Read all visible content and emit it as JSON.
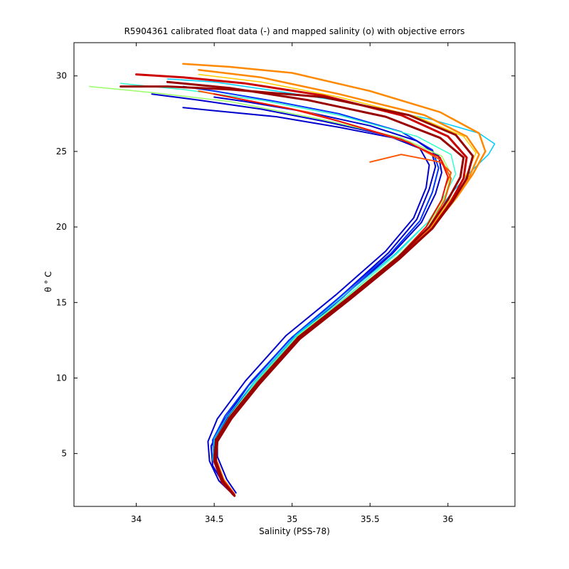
{
  "chart_data": {
    "type": "line",
    "title": "R5904361 calibrated float data (-) and mapped salinity (o) with objective errors",
    "xlabel": "Salinity (PSS-78)",
    "ylabel": "θ ° C",
    "xlim": [
      33.6,
      36.43
    ],
    "ylim": [
      1.5,
      32.2
    ],
    "x_ticks": [
      34,
      34.5,
      35,
      35.5,
      36
    ],
    "y_ticks": [
      5,
      10,
      15,
      20,
      25,
      30
    ],
    "x_tick_labels": [
      "34",
      "34.5",
      "35",
      "35.5",
      "36"
    ],
    "y_tick_labels": [
      "5",
      "10",
      "15",
      "20",
      "25",
      "30"
    ],
    "grid": false,
    "legend": "none",
    "series_colors": [
      "#0000cc",
      "#0033ff",
      "#00ccff",
      "#33ffcc",
      "#99ff66",
      "#ffcc00",
      "#ff8800",
      "#ff5500",
      "#ee1100",
      "#cc0000",
      "#990000"
    ],
    "series": [
      {
        "color": "#0000cc",
        "width": 2.0,
        "points": [
          [
            34.63,
            2.2
          ],
          [
            34.56,
            3
          ],
          [
            34.49,
            4.2
          ],
          [
            34.48,
            5.5
          ],
          [
            34.55,
            7
          ],
          [
            34.72,
            9.5
          ],
          [
            34.98,
            12.5
          ],
          [
            35.3,
            15.3
          ],
          [
            35.62,
            18.3
          ],
          [
            35.8,
            20.5
          ],
          [
            35.88,
            22.5
          ],
          [
            35.92,
            24
          ],
          [
            35.9,
            24.8
          ],
          [
            35.7,
            25.8
          ],
          [
            35.3,
            26.6
          ],
          [
            34.9,
            27.3
          ],
          [
            34.5,
            27.7
          ],
          [
            34.3,
            27.9
          ]
        ]
      },
      {
        "color": "#0000cc",
        "width": 2.0,
        "points": [
          [
            34.62,
            2.3
          ],
          [
            34.53,
            3.2
          ],
          [
            34.47,
            4.5
          ],
          [
            34.46,
            5.8
          ],
          [
            34.52,
            7.3
          ],
          [
            34.7,
            9.8
          ],
          [
            34.96,
            12.8
          ],
          [
            35.28,
            15.5
          ],
          [
            35.6,
            18.4
          ],
          [
            35.78,
            20.6
          ],
          [
            35.86,
            22.6
          ],
          [
            35.88,
            24.1
          ],
          [
            35.82,
            25.2
          ],
          [
            35.6,
            26.1
          ],
          [
            35.2,
            27
          ],
          [
            34.8,
            27.8
          ],
          [
            34.4,
            28.4
          ],
          [
            34.1,
            28.8
          ]
        ]
      },
      {
        "color": "#0033ff",
        "width": 2.0,
        "points": [
          [
            34.63,
            2.2
          ],
          [
            34.57,
            3.1
          ],
          [
            34.5,
            4.4
          ],
          [
            34.49,
            5.9
          ],
          [
            34.57,
            7.5
          ],
          [
            34.74,
            9.8
          ],
          [
            35,
            12.7
          ],
          [
            35.31,
            15.4
          ],
          [
            35.63,
            18.2
          ],
          [
            35.82,
            20.4
          ],
          [
            35.9,
            22.3
          ],
          [
            35.94,
            23.9
          ],
          [
            35.9,
            25.1
          ],
          [
            35.7,
            26.3
          ],
          [
            35.3,
            27.5
          ],
          [
            34.9,
            28.3
          ],
          [
            34.5,
            29
          ],
          [
            34.3,
            29.3
          ]
        ]
      },
      {
        "color": "#0000cc",
        "width": 2.0,
        "points": [
          [
            34.64,
            2.4
          ],
          [
            34.58,
            3.3
          ],
          [
            34.52,
            4.8
          ],
          [
            34.52,
            6.2
          ],
          [
            34.6,
            7.6
          ],
          [
            34.78,
            9.9
          ],
          [
            35.02,
            12.7
          ],
          [
            35.33,
            15.4
          ],
          [
            35.64,
            18.2
          ],
          [
            35.83,
            20.3
          ],
          [
            35.92,
            22.2
          ],
          [
            35.96,
            23.6
          ],
          [
            35.94,
            24.7
          ],
          [
            35.8,
            25.7
          ],
          [
            35.5,
            26.7
          ],
          [
            35.1,
            27.6
          ],
          [
            34.7,
            28.3
          ],
          [
            34.5,
            28.6
          ]
        ]
      },
      {
        "color": "#00ccff",
        "width": 1.5,
        "points": [
          [
            34.63,
            2.3
          ],
          [
            34.55,
            3.2
          ],
          [
            34.49,
            4.6
          ],
          [
            34.5,
            6
          ],
          [
            34.58,
            7.4
          ],
          [
            34.76,
            9.8
          ],
          [
            35.02,
            12.8
          ],
          [
            35.34,
            15.5
          ],
          [
            35.66,
            18.2
          ],
          [
            35.88,
            20.4
          ],
          [
            36.02,
            22.2
          ],
          [
            36.14,
            23.6
          ],
          [
            36.26,
            24.8
          ],
          [
            36.3,
            25.5
          ],
          [
            36.2,
            26.2
          ],
          [
            35.9,
            27.1
          ],
          [
            35.4,
            28.2
          ],
          [
            34.9,
            29
          ],
          [
            34.5,
            29.6
          ],
          [
            34.2,
            29.8
          ]
        ]
      },
      {
        "color": "#33ffcc",
        "width": 1.5,
        "points": [
          [
            34.63,
            2.3
          ],
          [
            34.55,
            3.2
          ],
          [
            34.5,
            4.6
          ],
          [
            34.51,
            6
          ],
          [
            34.6,
            7.5
          ],
          [
            34.77,
            9.8
          ],
          [
            35.03,
            12.8
          ],
          [
            35.35,
            15.4
          ],
          [
            35.67,
            18.2
          ],
          [
            35.87,
            20.3
          ],
          [
            35.98,
            22.1
          ],
          [
            36.05,
            23.5
          ],
          [
            36.02,
            24.8
          ],
          [
            35.8,
            26
          ],
          [
            35.3,
            27.4
          ],
          [
            34.8,
            28.4
          ],
          [
            34.3,
            29.1
          ],
          [
            34,
            29.4
          ],
          [
            33.9,
            29.5
          ]
        ]
      },
      {
        "color": "#99ff66",
        "width": 1.5,
        "points": [
          [
            34.63,
            2.3
          ],
          [
            34.56,
            3.3
          ],
          [
            34.5,
            4.7
          ],
          [
            34.51,
            6
          ],
          [
            34.6,
            7.5
          ],
          [
            34.78,
            9.8
          ],
          [
            35.04,
            12.8
          ],
          [
            35.36,
            15.4
          ],
          [
            35.68,
            18.1
          ],
          [
            35.88,
            20.2
          ],
          [
            35.98,
            22
          ],
          [
            36.02,
            23.5
          ],
          [
            35.96,
            24.7
          ],
          [
            35.7,
            25.9
          ],
          [
            35.2,
            27.1
          ],
          [
            34.6,
            28.3
          ],
          [
            34.1,
            28.9
          ],
          [
            33.8,
            29.2
          ],
          [
            33.7,
            29.3
          ]
        ]
      },
      {
        "color": "#ffcc00",
        "width": 1.5,
        "points": [
          [
            34.63,
            2.3
          ],
          [
            34.56,
            3.3
          ],
          [
            34.51,
            4.7
          ],
          [
            34.52,
            6
          ],
          [
            34.61,
            7.5
          ],
          [
            34.79,
            9.8
          ],
          [
            35.05,
            12.8
          ],
          [
            35.37,
            15.4
          ],
          [
            35.69,
            18.1
          ],
          [
            35.9,
            20.2
          ],
          [
            36.03,
            22
          ],
          [
            36.12,
            23.5
          ],
          [
            36.18,
            24.9
          ],
          [
            36.1,
            26
          ],
          [
            35.8,
            27.3
          ],
          [
            35.3,
            28.6
          ],
          [
            34.8,
            29.6
          ],
          [
            34.4,
            30.1
          ]
        ]
      },
      {
        "color": "#ff8800",
        "width": 2.5,
        "points": [
          [
            34.63,
            2.3
          ],
          [
            34.56,
            3.3
          ],
          [
            34.51,
            4.7
          ],
          [
            34.52,
            6
          ],
          [
            34.61,
            7.5
          ],
          [
            34.79,
            9.8
          ],
          [
            35.05,
            12.8
          ],
          [
            35.37,
            15.4
          ],
          [
            35.69,
            18.1
          ],
          [
            35.92,
            20.2
          ],
          [
            36.06,
            22
          ],
          [
            36.16,
            23.5
          ],
          [
            36.24,
            25
          ],
          [
            36.2,
            26.2
          ],
          [
            35.95,
            27.6
          ],
          [
            35.5,
            29
          ],
          [
            35,
            30.2
          ],
          [
            34.6,
            30.6
          ],
          [
            34.3,
            30.8
          ]
        ]
      },
      {
        "color": "#ff8800",
        "width": 2.5,
        "points": [
          [
            34.62,
            2.3
          ],
          [
            34.55,
            3.2
          ],
          [
            34.5,
            4.6
          ],
          [
            34.51,
            5.9
          ],
          [
            34.6,
            7.4
          ],
          [
            34.78,
            9.7
          ],
          [
            35.04,
            12.7
          ],
          [
            35.36,
            15.3
          ],
          [
            35.68,
            18
          ],
          [
            35.9,
            20.1
          ],
          [
            36.04,
            21.9
          ],
          [
            36.14,
            23.4
          ],
          [
            36.2,
            24.8
          ],
          [
            36.12,
            26
          ],
          [
            35.85,
            27.4
          ],
          [
            35.3,
            28.8
          ],
          [
            34.8,
            29.9
          ],
          [
            34.4,
            30.4
          ]
        ]
      },
      {
        "color": "#ff5500",
        "width": 2.0,
        "points": [
          [
            34.63,
            2.3
          ],
          [
            34.56,
            3.2
          ],
          [
            34.5,
            4.6
          ],
          [
            34.51,
            5.9
          ],
          [
            34.6,
            7.4
          ],
          [
            34.78,
            9.7
          ],
          [
            35.04,
            12.7
          ],
          [
            35.36,
            15.3
          ],
          [
            35.68,
            18
          ],
          [
            35.88,
            20
          ],
          [
            35.98,
            21.8
          ],
          [
            36.02,
            23.2
          ],
          [
            35.96,
            24.4
          ],
          [
            35.75,
            25.6
          ],
          [
            35.4,
            26.7
          ],
          [
            35.1,
            27.6
          ],
          [
            34.7,
            28.4
          ],
          [
            34.4,
            29
          ]
        ]
      },
      {
        "color": "#ff5500",
        "width": 2.0,
        "points": [
          [
            35.5,
            24.3
          ],
          [
            35.7,
            24.8
          ],
          [
            35.95,
            24.3
          ],
          [
            36.02,
            23.6
          ],
          [
            35.98,
            22.6
          ]
        ]
      },
      {
        "color": "#ee1100",
        "width": 2.0,
        "points": [
          [
            34.63,
            2.3
          ],
          [
            34.56,
            3.2
          ],
          [
            34.5,
            4.6
          ],
          [
            34.51,
            5.9
          ],
          [
            34.6,
            7.4
          ],
          [
            34.78,
            9.7
          ],
          [
            35.04,
            12.7
          ],
          [
            35.36,
            15.3
          ],
          [
            35.68,
            18
          ],
          [
            35.86,
            20
          ],
          [
            35.96,
            21.8
          ],
          [
            36,
            23.3
          ],
          [
            35.95,
            24.6
          ],
          [
            35.7,
            25.8
          ],
          [
            35.3,
            27
          ],
          [
            35,
            27.8
          ],
          [
            34.7,
            28.4
          ],
          [
            34.5,
            28.8
          ]
        ]
      },
      {
        "color": "#cc0000",
        "width": 3.0,
        "points": [
          [
            34.63,
            2.2
          ],
          [
            34.55,
            3.1
          ],
          [
            34.5,
            4.5
          ],
          [
            34.51,
            5.8
          ],
          [
            34.6,
            7.3
          ],
          [
            34.78,
            9.6
          ],
          [
            35.04,
            12.6
          ],
          [
            35.36,
            15.2
          ],
          [
            35.68,
            17.9
          ],
          [
            35.9,
            19.9
          ],
          [
            36.02,
            21.7
          ],
          [
            36.1,
            23.2
          ],
          [
            36.12,
            24.6
          ],
          [
            36,
            26
          ],
          [
            35.7,
            27.4
          ],
          [
            35.2,
            28.7
          ],
          [
            34.7,
            29.5
          ],
          [
            34.3,
            29.9
          ],
          [
            34,
            30.1
          ]
        ]
      },
      {
        "color": "#990000",
        "width": 3.0,
        "points": [
          [
            34.63,
            2.2
          ],
          [
            34.56,
            3.1
          ],
          [
            34.51,
            4.5
          ],
          [
            34.52,
            5.8
          ],
          [
            34.61,
            7.3
          ],
          [
            34.79,
            9.6
          ],
          [
            35.05,
            12.6
          ],
          [
            35.37,
            15.2
          ],
          [
            35.69,
            17.9
          ],
          [
            35.9,
            19.9
          ],
          [
            36.03,
            21.7
          ],
          [
            36.12,
            23.2
          ],
          [
            36.16,
            24.7
          ],
          [
            36.05,
            26.1
          ],
          [
            35.75,
            27.4
          ],
          [
            35.2,
            28.6
          ],
          [
            34.6,
            29.1
          ],
          [
            34.2,
            29.3
          ],
          [
            33.9,
            29.3
          ]
        ]
      },
      {
        "color": "#990000",
        "width": 3.0,
        "points": [
          [
            34.62,
            2.3
          ],
          [
            34.55,
            3.2
          ],
          [
            34.5,
            4.6
          ],
          [
            34.51,
            5.9
          ],
          [
            34.6,
            7.4
          ],
          [
            34.78,
            9.7
          ],
          [
            35.04,
            12.7
          ],
          [
            35.36,
            15.3
          ],
          [
            35.68,
            18
          ],
          [
            35.88,
            20
          ],
          [
            36,
            21.8
          ],
          [
            36.08,
            23.3
          ],
          [
            36.1,
            24.6
          ],
          [
            35.95,
            25.9
          ],
          [
            35.6,
            27.3
          ],
          [
            35.1,
            28.4
          ],
          [
            34.6,
            29.2
          ],
          [
            34.2,
            29.6
          ]
        ]
      }
    ]
  }
}
